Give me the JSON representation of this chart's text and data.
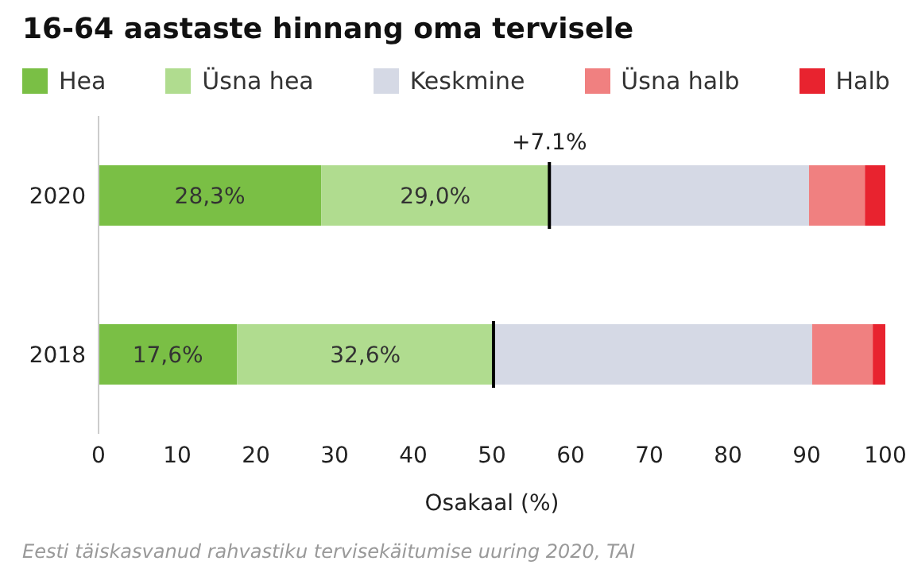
{
  "chart_data": {
    "type": "bar",
    "orientation": "horizontal",
    "stacked": true,
    "title": "16-64 aastaste hinnang oma tervisele",
    "xlabel": "Osakaal (%)",
    "categories": [
      "2020",
      "2018"
    ],
    "series": [
      {
        "name": "Hea",
        "color": "#7abf45",
        "values": [
          28.3,
          17.6
        ],
        "value_labels": [
          "28,3%",
          "17,6%"
        ]
      },
      {
        "name": "Üsna hea",
        "color": "#b0dc8f",
        "values": [
          29.0,
          32.6
        ],
        "value_labels": [
          "29,0%",
          "32,6%"
        ]
      },
      {
        "name": "Keskmine",
        "color": "#d5d9e5",
        "values": [
          33.0,
          40.5
        ]
      },
      {
        "name": "Üsna halb",
        "color": "#f08080",
        "values": [
          7.1,
          7.7
        ]
      },
      {
        "name": "Halb",
        "color": "#e8232f",
        "values": [
          2.6,
          1.6
        ]
      }
    ],
    "xlim": [
      0,
      100
    ],
    "xticks": [
      0,
      10,
      20,
      30,
      40,
      50,
      60,
      70,
      80,
      90,
      100
    ],
    "legend": "top",
    "grid": false,
    "annotations": [
      {
        "text": "+7.1%",
        "x": 57.3,
        "y": "2020"
      },
      "Eesti täiskasvanud rahvastiku tervisekäitumise uuring 2020, TAI"
    ]
  }
}
